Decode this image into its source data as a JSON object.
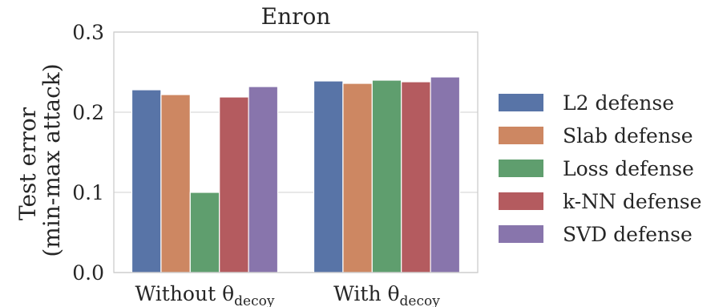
{
  "chart_data": {
    "type": "bar",
    "title": "Enron",
    "ylabel_lines": [
      "Test error",
      "(min-max attack)"
    ],
    "categories": [
      {
        "main": "Without θ",
        "sub": "decoy"
      },
      {
        "main": "With θ",
        "sub": "decoy"
      }
    ],
    "ylim": [
      0,
      0.3
    ],
    "yticks": [
      {
        "value": 0.0,
        "label": "0.0"
      },
      {
        "value": 0.1,
        "label": "0.1"
      },
      {
        "value": 0.2,
        "label": "0.2"
      },
      {
        "value": 0.3,
        "label": "0.3"
      }
    ],
    "grid": true,
    "legend_position": "right",
    "series": [
      {
        "name": "L2 defense",
        "color": "#5874a7",
        "values": [
          0.228,
          0.239
        ]
      },
      {
        "name": "Slab defense",
        "color": "#cd8762",
        "values": [
          0.222,
          0.236
        ]
      },
      {
        "name": "Loss defense",
        "color": "#5f9e6e",
        "values": [
          0.1,
          0.24
        ]
      },
      {
        "name": "k-NN defense",
        "color": "#b45b5f",
        "values": [
          0.219,
          0.238
        ]
      },
      {
        "name": "SVD defense",
        "color": "#8875ac",
        "values": [
          0.232,
          0.244
        ]
      }
    ]
  }
}
